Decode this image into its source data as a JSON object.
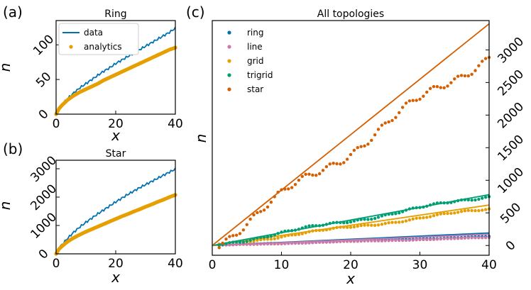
{
  "chart_data": [
    {
      "panel_label": "(a)",
      "type": "line",
      "title": "Ring",
      "xlabel": "x",
      "ylabel": "n",
      "xlim": [
        0,
        40
      ],
      "ylim": [
        0,
        135
      ],
      "xticks": [
        0,
        20,
        40
      ],
      "yticks": [
        0,
        50,
        100
      ],
      "legend": {
        "position": "top-left",
        "entries": [
          "data",
          "analytics"
        ]
      },
      "series": [
        {
          "name": "data",
          "style": "line",
          "color": "#0072b2",
          "x": [
            0,
            1,
            2,
            4,
            6,
            8,
            10,
            12,
            14,
            16,
            18,
            20,
            22,
            24,
            26,
            28,
            30,
            32,
            34,
            36,
            38,
            40
          ],
          "y": [
            2,
            8,
            14,
            23,
            31,
            38,
            44,
            50,
            56,
            62,
            67,
            73,
            78,
            83,
            88,
            93,
            98,
            103,
            108,
            113,
            118,
            124
          ]
        },
        {
          "name": "analytics",
          "style": "dots",
          "color": "#e69f00",
          "x": [
            0,
            1,
            2,
            3,
            4,
            5,
            6,
            8,
            10,
            12,
            14,
            16,
            18,
            20,
            22,
            24,
            26,
            28,
            30,
            32,
            34,
            36,
            38,
            40
          ],
          "y": [
            0,
            8,
            13,
            17,
            21,
            24,
            27,
            32,
            36,
            40,
            44,
            49,
            53,
            57,
            61,
            65,
            69,
            73,
            77,
            81,
            85,
            89,
            93,
            96
          ]
        }
      ]
    },
    {
      "panel_label": "(b)",
      "type": "line",
      "title": "Star",
      "xlabel": "x",
      "ylabel": "n",
      "xlim": [
        0,
        40
      ],
      "ylim": [
        0,
        3300
      ],
      "xticks": [
        0,
        20,
        40
      ],
      "yticks": [
        0,
        1000,
        2000,
        3000
      ],
      "series": [
        {
          "name": "data",
          "style": "line",
          "color": "#0072b2",
          "x": [
            0,
            1,
            2,
            4,
            6,
            8,
            10,
            12,
            14,
            16,
            18,
            20,
            22,
            24,
            26,
            28,
            30,
            32,
            34,
            36,
            38,
            40
          ],
          "y": [
            0,
            200,
            330,
            560,
            770,
            950,
            1110,
            1260,
            1410,
            1550,
            1690,
            1830,
            1960,
            2090,
            2210,
            2330,
            2440,
            2550,
            2660,
            2770,
            2880,
            2990
          ]
        },
        {
          "name": "analytics",
          "style": "dots",
          "color": "#e69f00",
          "x": [
            0,
            1,
            2,
            3,
            4,
            5,
            6,
            8,
            10,
            12,
            14,
            16,
            18,
            20,
            22,
            24,
            26,
            28,
            30,
            32,
            34,
            36,
            38,
            40
          ],
          "y": [
            0,
            170,
            270,
            360,
            440,
            510,
            570,
            680,
            780,
            870,
            960,
            1050,
            1140,
            1230,
            1320,
            1400,
            1490,
            1570,
            1660,
            1740,
            1830,
            1910,
            2000,
            2080
          ]
        }
      ]
    },
    {
      "panel_label": "(c)",
      "type": "scatter",
      "title": "All topologies",
      "xlabel": "x",
      "ylabel": "n",
      "xlim": [
        0,
        40
      ],
      "ylim": [
        -150,
        3450
      ],
      "xticks": [
        0,
        10,
        20,
        30,
        40
      ],
      "yticks": [
        0,
        500,
        1000,
        1500,
        2000,
        2500,
        3000
      ],
      "yaxis_side": "right",
      "legend": {
        "position": "top-left",
        "entries": [
          "ring",
          "line",
          "grid",
          "trigrid",
          "star"
        ]
      },
      "series": [
        {
          "name": "ring",
          "color": "#0072b2",
          "line_slope": 4.8,
          "dot_slope": 3.4
        },
        {
          "name": "line",
          "color": "#cc79a7",
          "line_slope": 4.3,
          "dot_slope": 3.0
        },
        {
          "name": "grid",
          "color": "#e69f00",
          "line_slope": 15.5,
          "dot_slope": 14.0
        },
        {
          "name": "trigrid",
          "color": "#009e73",
          "line_slope": 19.5,
          "dot_slope": 19.0
        },
        {
          "name": "star",
          "color": "#d55e00",
          "line_slope": 85.0,
          "dot_slope": 73.5
        }
      ]
    }
  ]
}
